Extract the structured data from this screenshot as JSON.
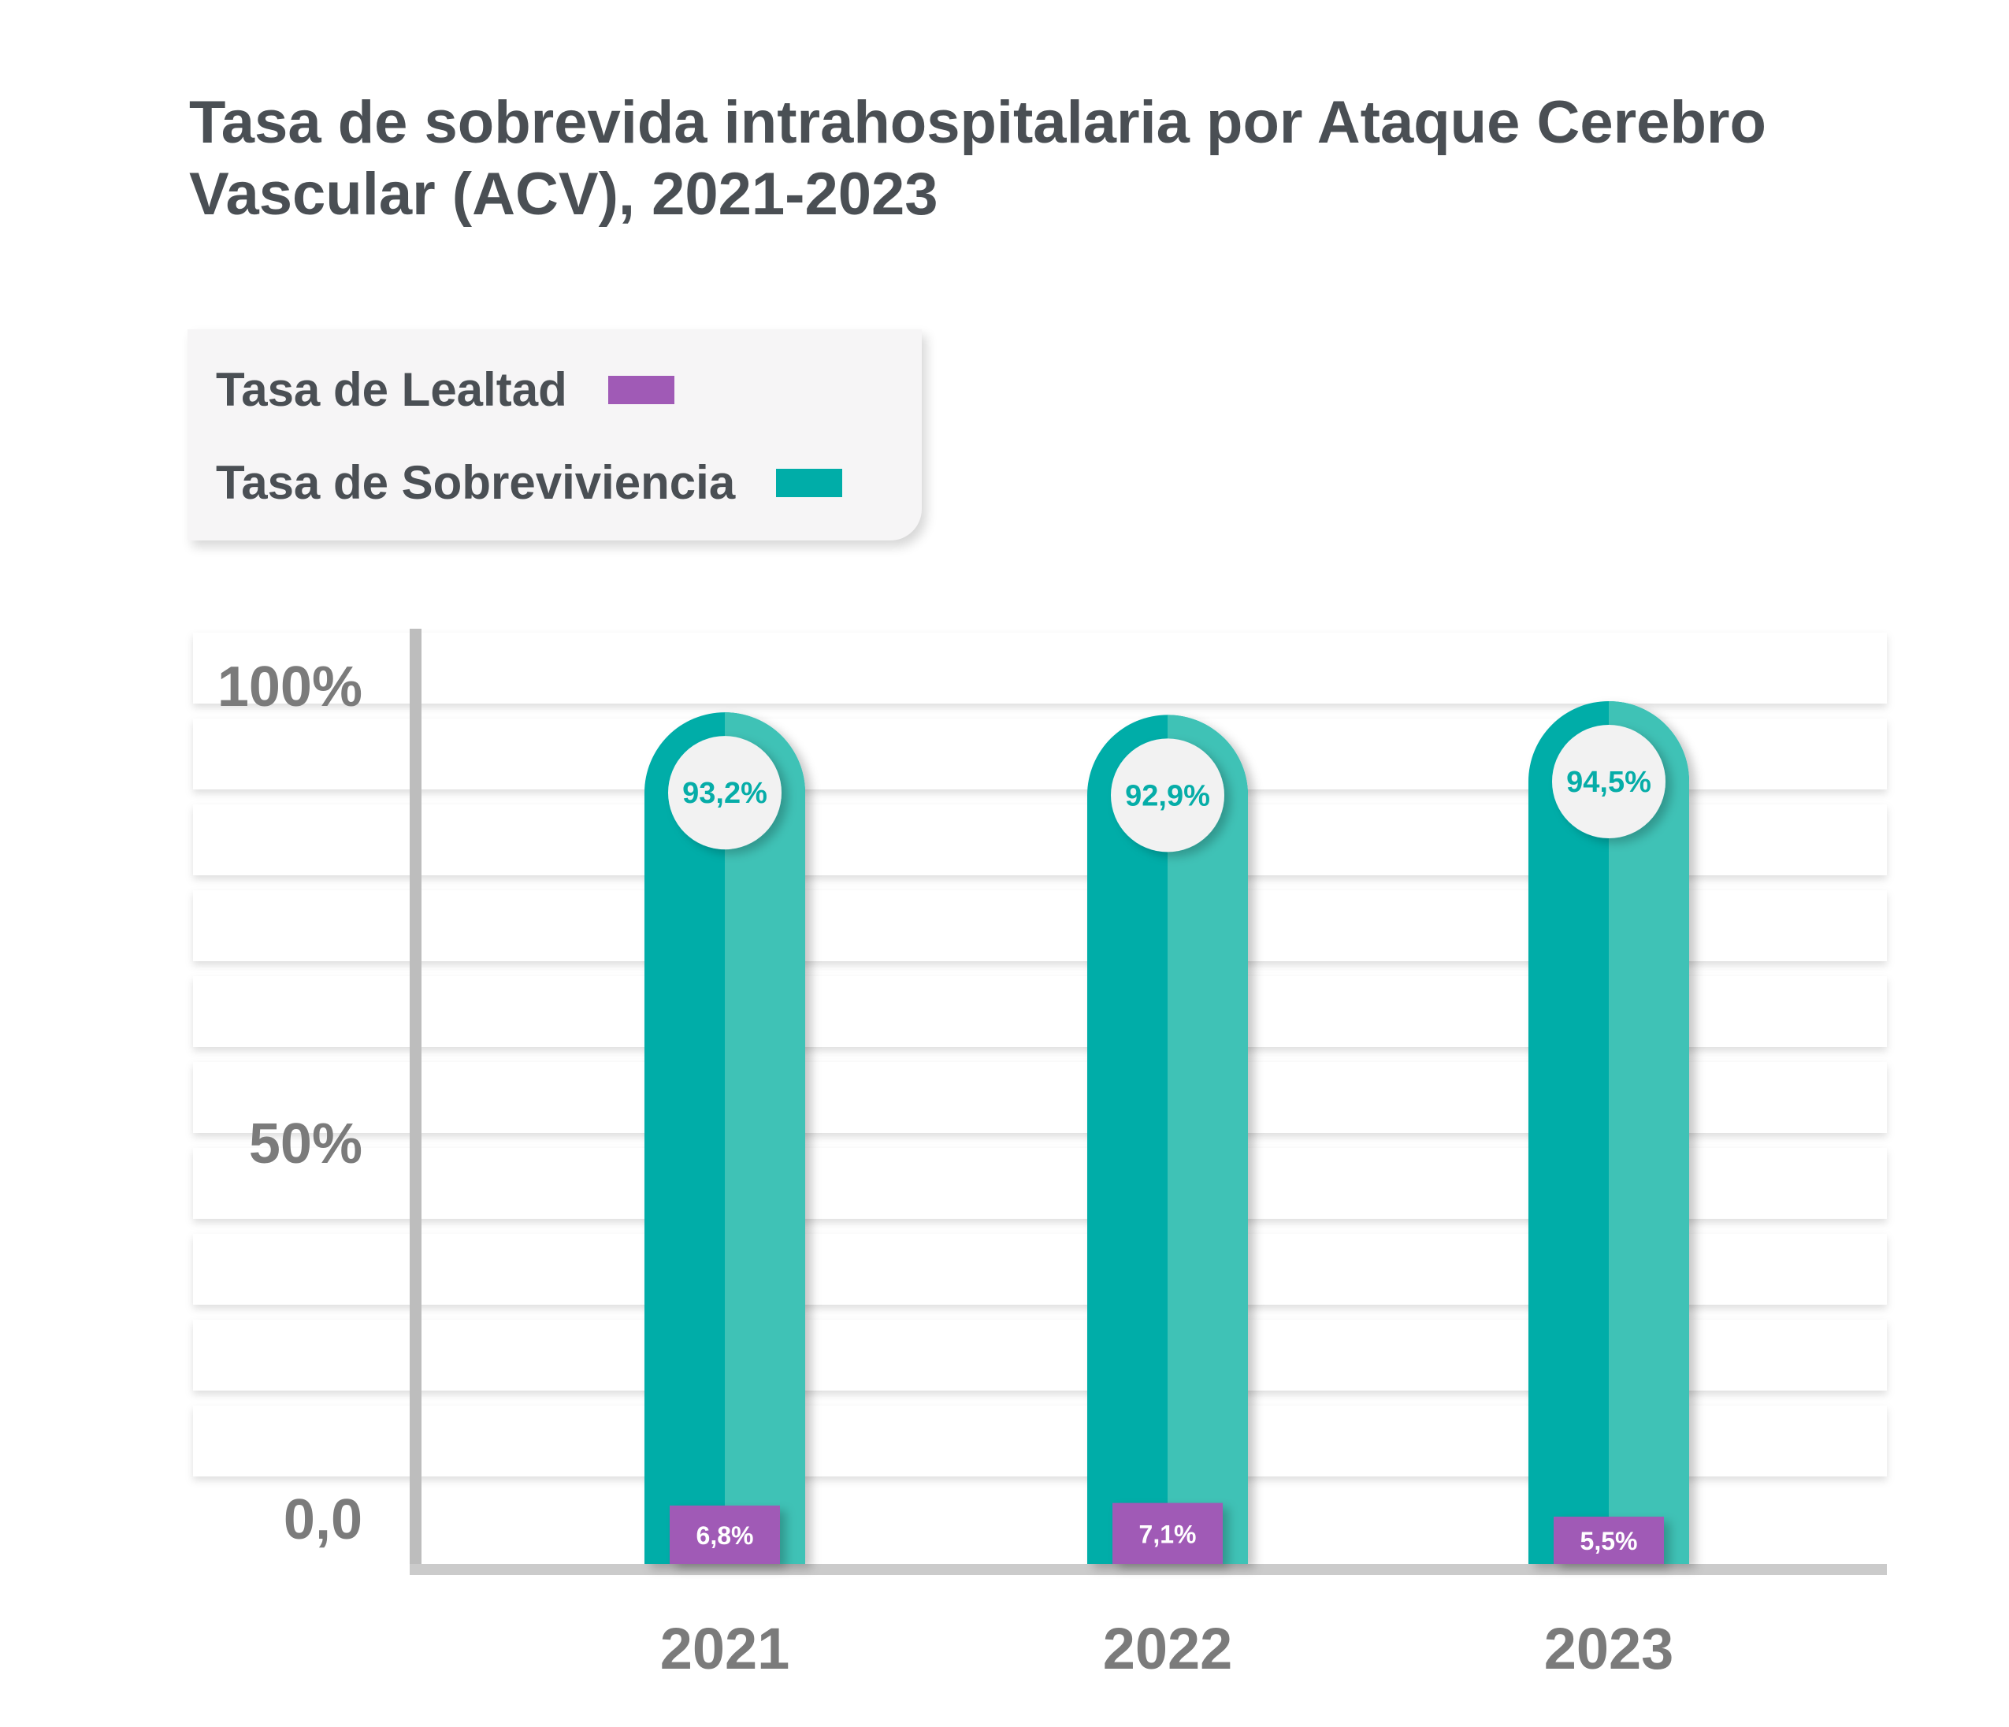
{
  "title": "Tasa de sobrevida intrahospitalaria por Ataque Cerebro Vascular (ACV), 2021-2023",
  "legend": [
    {
      "label": "Tasa de Lealtad",
      "color": "#a05ab6"
    },
    {
      "label": "Tasa de Sobreviviencia",
      "color": "#00ada8"
    }
  ],
  "chart_data": {
    "type": "bar",
    "categories": [
      "2021",
      "2022",
      "2023"
    ],
    "series": [
      {
        "name": "Tasa de Sobreviviencia",
        "values": [
          93.2,
          92.9,
          94.5
        ],
        "labels": [
          "93,2%",
          "92,9%",
          "94,5%"
        ]
      },
      {
        "name": "Tasa de Lealtad",
        "values": [
          6.8,
          7.1,
          5.5
        ],
        "labels": [
          "6,8%",
          "7,1%",
          "5,5%"
        ]
      }
    ],
    "yticks": [
      {
        "value": 100,
        "label": "100%"
      },
      {
        "value": 50,
        "label": "50%"
      },
      {
        "value": 0,
        "label": "0,0"
      }
    ],
    "ylim": [
      0,
      100
    ],
    "grid": true,
    "legend_position": "top-left"
  }
}
